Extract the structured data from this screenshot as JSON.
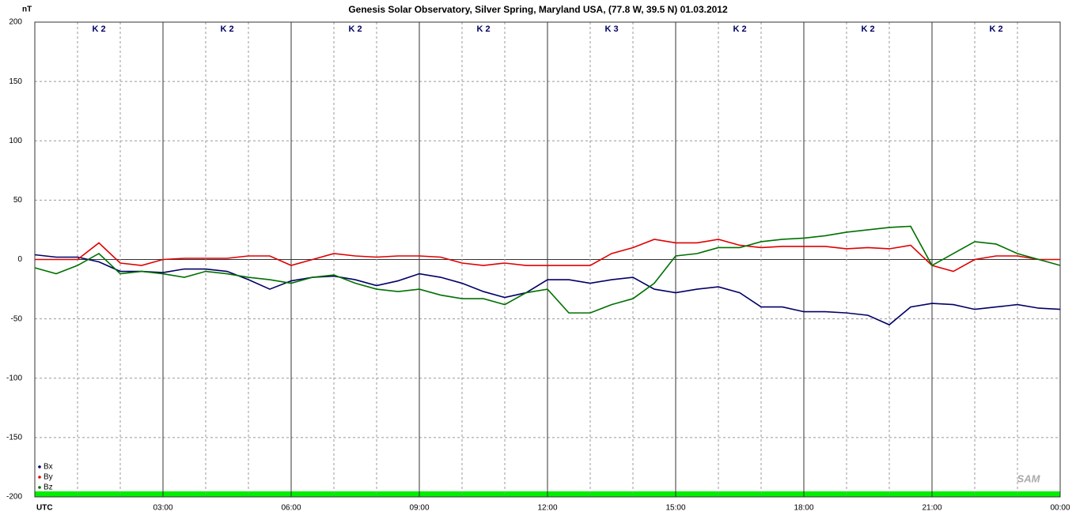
{
  "chart_data": {
    "type": "line",
    "title": "Genesis Solar Observatory, Silver Spring, Maryland USA, (77.8 W, 39.5 N)  01.03.2012",
    "y_unit": "nT",
    "logo": "SAM",
    "x": [
      0,
      0.5,
      1,
      1.5,
      2,
      2.5,
      3,
      3.5,
      4,
      4.5,
      5,
      5.5,
      6,
      6.5,
      7,
      7.5,
      8,
      8.5,
      9,
      9.5,
      10,
      10.5,
      11,
      11.5,
      12,
      12.5,
      13,
      13.5,
      14,
      14.5,
      15,
      15.5,
      16,
      16.5,
      17,
      17.5,
      18,
      18.5,
      19,
      19.5,
      20,
      20.5,
      21,
      21.5,
      22,
      22.5,
      23,
      23.5,
      24
    ],
    "series": [
      {
        "name": "Bx",
        "color": "#000066",
        "values": [
          4,
          2,
          2,
          -2,
          -10,
          -10,
          -11,
          -8,
          -8,
          -10,
          -17,
          -25,
          -18,
          -15,
          -14,
          -17,
          -22,
          -18,
          -12,
          -15,
          -20,
          -27,
          -32,
          -28,
          -17,
          -17,
          -20,
          -17,
          -15,
          -25,
          -28,
          -25,
          -23,
          -28,
          -40,
          -40,
          -44,
          -44,
          -45,
          -47,
          -55,
          -40,
          -37,
          -38,
          -42,
          -40,
          -38,
          -41,
          -42
        ]
      },
      {
        "name": "By",
        "color": "#e00000",
        "values": [
          0,
          0,
          0,
          14,
          -3,
          -5,
          0,
          1,
          1,
          1,
          3,
          3,
          -5,
          0,
          5,
          3,
          2,
          3,
          3,
          2,
          -3,
          -5,
          -3,
          -5,
          -5,
          -5,
          -5,
          5,
          10,
          17,
          14,
          14,
          17,
          12,
          10,
          11,
          11,
          11,
          9,
          10,
          9,
          12,
          -5,
          -10,
          0,
          3,
          3,
          0,
          0
        ]
      },
      {
        "name": "Bz",
        "color": "#007000",
        "values": [
          -7,
          -12,
          -5,
          5,
          -12,
          -10,
          -12,
          -15,
          -10,
          -12,
          -15,
          -17,
          -20,
          -15,
          -13,
          -20,
          -25,
          -27,
          -25,
          -30,
          -33,
          -33,
          -38,
          -28,
          -25,
          -45,
          -45,
          -38,
          -33,
          -20,
          3,
          5,
          10,
          10,
          15,
          17,
          18,
          20,
          23,
          25,
          27,
          28,
          -5,
          5,
          15,
          13,
          5,
          0,
          -5
        ]
      }
    ],
    "k_index": [
      "K 2",
      "K 2",
      "K 2",
      "K 2",
      "K 3",
      "K 2",
      "K 2",
      "K 2"
    ],
    "xlim": [
      0,
      24
    ],
    "xticks": [
      {
        "value": 0,
        "label": "UTC"
      },
      {
        "value": 3,
        "label": "03:00"
      },
      {
        "value": 6,
        "label": "06:00"
      },
      {
        "value": 9,
        "label": "09:00"
      },
      {
        "value": 12,
        "label": "12:00"
      },
      {
        "value": 15,
        "label": "15:00"
      },
      {
        "value": 18,
        "label": "18:00"
      },
      {
        "value": 21,
        "label": "21:00"
      },
      {
        "value": 24,
        "label": "00:00"
      }
    ],
    "x_minor_ticks": [
      1,
      2,
      4,
      5,
      7,
      8,
      10,
      11,
      13,
      14,
      16,
      17,
      19,
      20,
      22,
      23
    ],
    "ylim": [
      -200,
      200
    ],
    "yticks": [
      200,
      150,
      100,
      50,
      0,
      -50,
      -100,
      -150,
      -200
    ],
    "grid": true,
    "legend": "bottom-left"
  }
}
